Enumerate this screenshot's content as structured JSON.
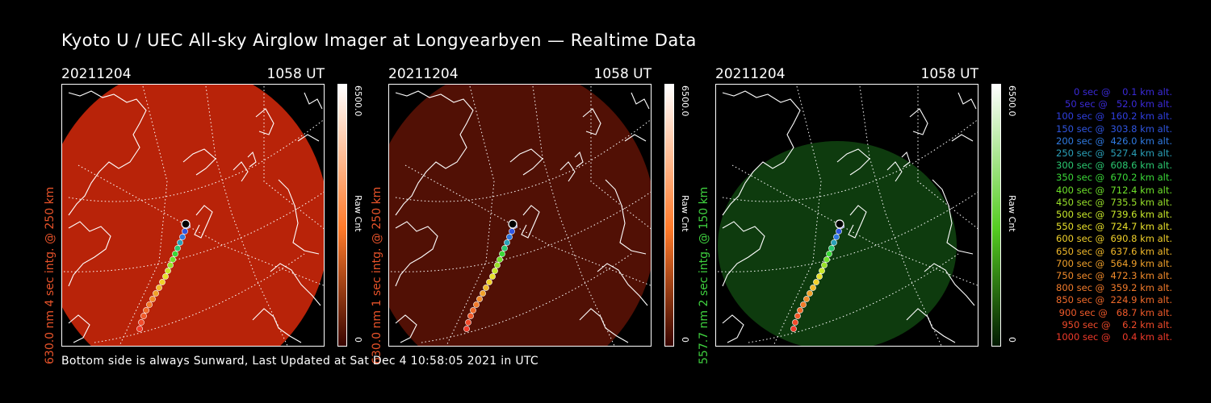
{
  "title": "Kyoto U / UEC All-sky Airglow Imager at Longyearbyen — Realtime Data",
  "footer": "Bottom side is always Sunward, Last Updated at Sat Dec  4 10:58:05 2021 in UTC",
  "panels": [
    {
      "date": "20211204",
      "time": "1058 UT",
      "side_label": "630.0 nm 4 sec intg. @ 250 km",
      "cbar_max": "6500.0",
      "cbar_min": "0",
      "cbar_unit": "Raw Cnt",
      "label_color": "#e8532a",
      "glow_color": "#c8260a",
      "glow_opacity": 0.92,
      "cbar_top": "#ffffff",
      "cbar_mid": "#ff7a2a",
      "cbar_bottom": "#3a0500"
    },
    {
      "date": "20211204",
      "time": "1058 UT",
      "side_label": "630.0 nm 1 sec intg. @ 250 km",
      "cbar_max": "6500.0",
      "cbar_min": "0",
      "cbar_unit": "Raw Cnt",
      "label_color": "#e8532a",
      "glow_color": "#5a1206",
      "glow_opacity": 0.9,
      "cbar_top": "#ffffff",
      "cbar_mid": "#ff7a2a",
      "cbar_bottom": "#3a0500"
    },
    {
      "date": "20211204",
      "time": "1058 UT",
      "side_label": "557.7 nm 2 sec intg. @ 150 km",
      "cbar_max": "6500.0",
      "cbar_min": "0",
      "cbar_unit": "Raw Cnt",
      "label_color": "#3fd13f",
      "glow_color": "#0f3e0f",
      "glow_opacity": 0.95,
      "cbar_top": "#ffffff",
      "cbar_mid": "#55cc22",
      "cbar_bottom": "#021a02"
    }
  ],
  "legend": [
    {
      "text": "   0 sec @    0.1 km alt.",
      "color": "#3a2ad8"
    },
    {
      "text": "  50 sec @   52.0 km alt.",
      "color": "#3a2ad8"
    },
    {
      "text": " 100 sec @  160.2 km alt.",
      "color": "#2f3fe0"
    },
    {
      "text": " 150 sec @  303.8 km alt.",
      "color": "#2f55e0"
    },
    {
      "text": " 200 sec @  426.0 km alt.",
      "color": "#2f7ae0"
    },
    {
      "text": " 250 sec @  527.4 km alt.",
      "color": "#2aa0b8"
    },
    {
      "text": " 300 sec @  608.6 km alt.",
      "color": "#2ac870"
    },
    {
      "text": " 350 sec @  670.2 km alt.",
      "color": "#3ad838"
    },
    {
      "text": " 400 sec @  712.4 km alt.",
      "color": "#6ee02a"
    },
    {
      "text": " 450 sec @  735.5 km alt.",
      "color": "#98e02a"
    },
    {
      "text": " 500 sec @  739.6 km alt.",
      "color": "#c8e82a"
    },
    {
      "text": " 550 sec @  724.7 km alt.",
      "color": "#e8e02a"
    },
    {
      "text": " 600 sec @  690.8 km alt.",
      "color": "#f0d02a"
    },
    {
      "text": " 650 sec @  637.6 km alt.",
      "color": "#f0b82a"
    },
    {
      "text": " 700 sec @  564.9 km alt.",
      "color": "#f0a02a"
    },
    {
      "text": " 750 sec @  472.3 km alt.",
      "color": "#f08a2a"
    },
    {
      "text": " 800 sec @  359.2 km alt.",
      "color": "#f07a2a"
    },
    {
      "text": " 850 sec @  224.9 km alt.",
      "color": "#f06a2a"
    },
    {
      "text": " 900 sec @   68.7 km alt.",
      "color": "#f05a2a"
    },
    {
      "text": " 950 sec @    6.2 km alt.",
      "color": "#f04a2a"
    },
    {
      "text": "1000 sec @    0.4 km alt.",
      "color": "#f03a2a"
    }
  ]
}
